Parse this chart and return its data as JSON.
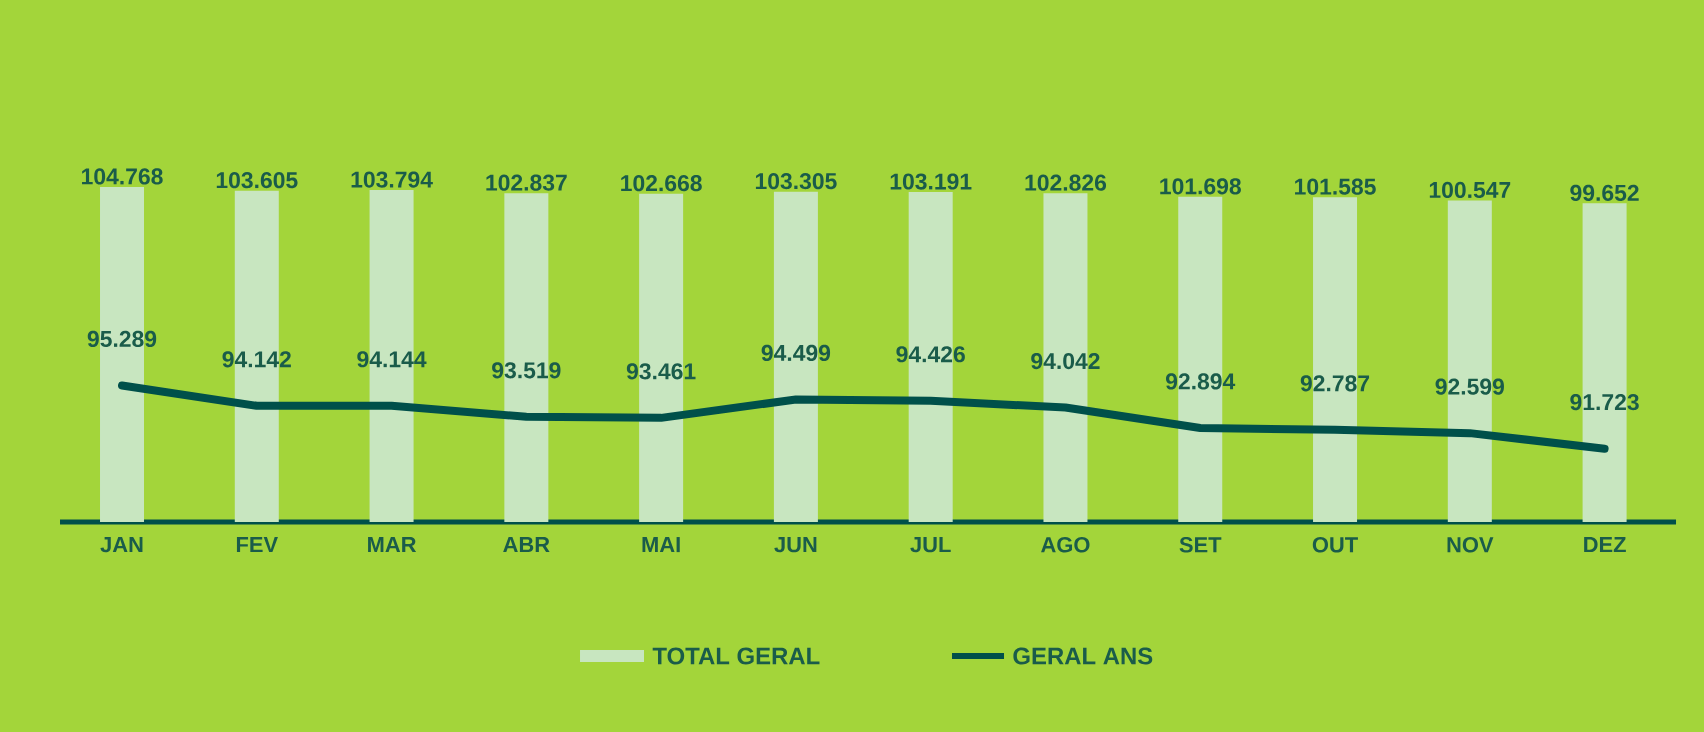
{
  "chart_data": {
    "type": "bar",
    "categories": [
      "JAN",
      "FEV",
      "MAR",
      "ABR",
      "MAI",
      "JUN",
      "JUL",
      "AGO",
      "SET",
      "OUT",
      "NOV",
      "DEZ"
    ],
    "series": [
      {
        "name": "TOTAL GERAL",
        "color": "#c8e6c0",
        "values": [
          104.768,
          103.605,
          103.794,
          102.837,
          102.668,
          103.305,
          103.191,
          102.826,
          101.698,
          101.585,
          100.547,
          99.652
        ]
      },
      {
        "name": "GERAL ANS",
        "type": "line",
        "axis": "y2",
        "color": "#00504a",
        "values": [
          95.289,
          94.142,
          94.144,
          93.519,
          93.461,
          94.499,
          94.426,
          94.042,
          92.894,
          92.787,
          92.599,
          91.723
        ]
      }
    ],
    "data_labels": true,
    "legend": "bottom",
    "tick_labels": "x"
  }
}
